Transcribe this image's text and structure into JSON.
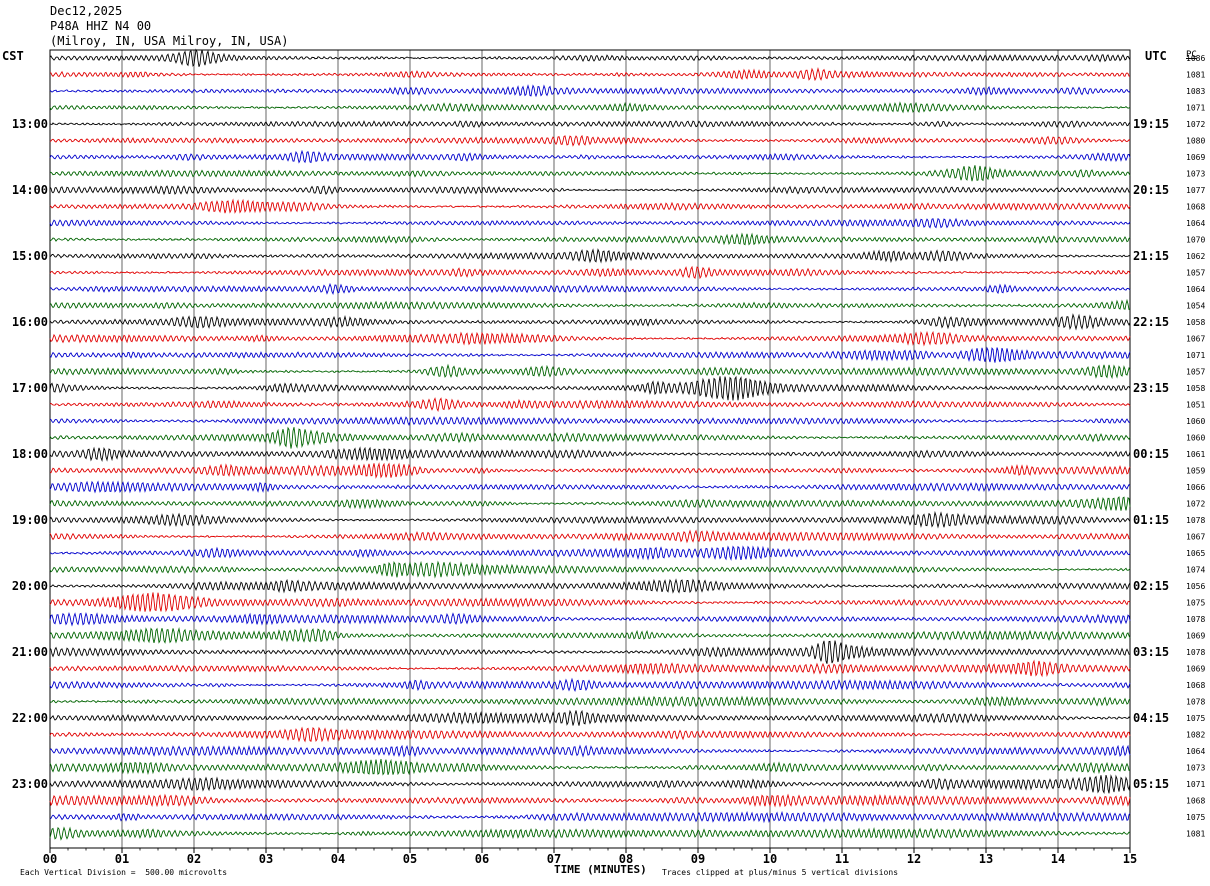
{
  "header": {
    "date": "Dec12,2025",
    "station": "P48A HHZ N4 00",
    "location": "(Milroy, IN, USA Milroy, IN, USA)"
  },
  "left_axis_title": "CST",
  "right_axis_title": "UTC",
  "pc_label": "PC",
  "footer": {
    "scale_note": "Each Vertical Division =  500.00 microvolts",
    "xlabel": "TIME (MINUTES)",
    "clip_note": "Traces clipped at plus/minus 5 vertical divisions"
  },
  "colors": {
    "cycle": [
      "#000000",
      "#e00000",
      "#0000cc",
      "#006400"
    ],
    "grid": "#000000"
  },
  "chart_data": {
    "type": "line",
    "title": "P48A HHZ N4 00 helicorder Dec12,2025",
    "x": [
      "00",
      "01",
      "02",
      "03",
      "04",
      "05",
      "06",
      "07",
      "08",
      "09",
      "10",
      "11",
      "12",
      "13",
      "14",
      "15"
    ],
    "xlim": [
      0,
      15
    ],
    "xlabel": "TIME (MINUTES)",
    "trace_count": 48,
    "left_hour_labels": [
      "13:00",
      "14:00",
      "15:00",
      "16:00",
      "17:00",
      "18:00",
      "19:00",
      "20:00",
      "21:00",
      "22:00",
      "23:00"
    ],
    "right_hour_labels": [
      "19:15",
      "20:15",
      "21:15",
      "22:15",
      "23:15",
      "00:15",
      "01:15",
      "02:15",
      "03:15",
      "04:15",
      "05:15"
    ],
    "first_label_trace_index": 4,
    "label_every_n_traces": 4,
    "right_values": [
      1086,
      1081,
      1083,
      1071,
      1072,
      1080,
      1069,
      1073,
      1077,
      1068,
      1064,
      1070,
      1062,
      1057,
      1064,
      1054,
      1058,
      1067,
      1071,
      1057,
      1058,
      1051,
      1060,
      1060,
      1061,
      1059,
      1066,
      1072,
      1078,
      1067,
      1065,
      1074,
      1056,
      1075,
      1078,
      1069,
      1078,
      1069,
      1068,
      1078,
      1075,
      1082,
      1064,
      1073,
      1071,
      1068,
      1075,
      1081
    ]
  }
}
